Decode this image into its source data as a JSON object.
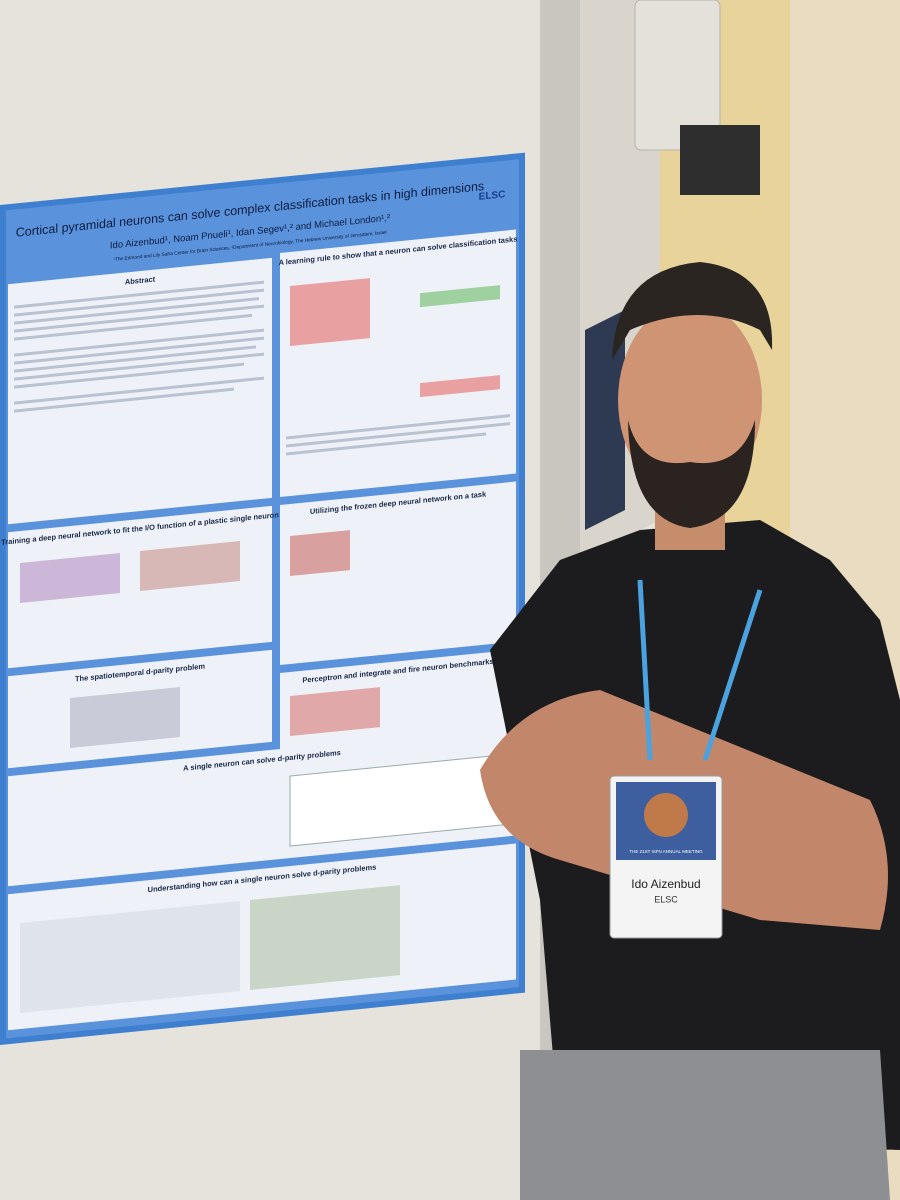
{
  "poster": {
    "title": "Cortical pyramidal neurons can solve complex classification tasks in high dimensions",
    "authors": "Ido Aizenbud¹, Noam Pnueli¹, Idan Segev¹,² and Michael London¹,²",
    "affiliation": "¹The Edmond and Lily Safra Center for Brain Sciences, ²Department of Neurobiology, The Hebrew University of Jerusalem, Israel",
    "logo": "ELSC",
    "sections": [
      "Abstract",
      "A learning rule to show that a neuron can solve classification tasks",
      "Training a deep neural network to fit the I/O function of a plastic single neuron",
      "Utilizing the frozen deep neural network on a task",
      "The spatiotemporal d-parity problem",
      "Perceptron and integrate and fire neuron benchmarks",
      "A single neuron can solve d-parity problems",
      "Understanding how can a single neuron solve d-parity problems"
    ]
  },
  "badge": {
    "event": "THE 21ST ISFN ANNUAL MEETING",
    "name": "Ido Aizenbud",
    "affiliation": "ELSC"
  }
}
